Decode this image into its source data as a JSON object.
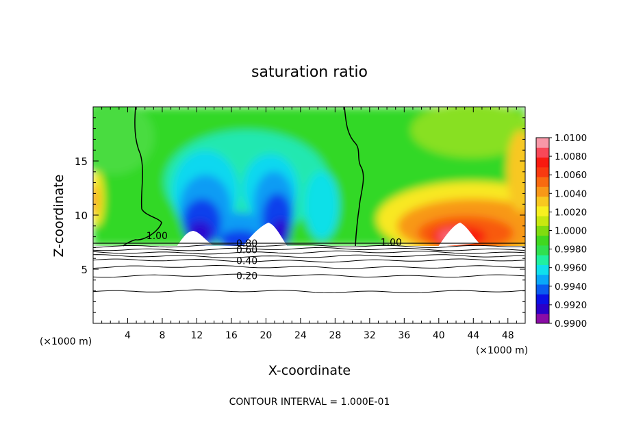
{
  "chart_data": {
    "type": "heatmap",
    "title": "saturation ratio",
    "xlabel": "X-coordinate",
    "ylabel": "Z-coordinate",
    "x_unit": "(×1000 m)",
    "xlim": [
      0,
      50
    ],
    "ylim": [
      0,
      20
    ],
    "x_ticks": [
      4,
      8,
      12,
      16,
      20,
      24,
      28,
      32,
      36,
      40,
      44,
      48
    ],
    "y_ticks": [
      5,
      10,
      15
    ],
    "footer": "CONTOUR INTERVAL = 1.000E-01",
    "colorbar": {
      "min": 0.99,
      "max": 1.01,
      "labels": [
        "1.0100",
        "1.0080",
        "1.0060",
        "1.0040",
        "1.0020",
        "1.0000",
        "0.9980",
        "0.9960",
        "0.9940",
        "0.9920",
        "0.9900"
      ],
      "colors": [
        "#8a0ca6",
        "#2a00c8",
        "#0a10e6",
        "#0a5cf0",
        "#0aa8f8",
        "#10e0ec",
        "#20f0a0",
        "#30e050",
        "#40d820",
        "#80dc10",
        "#c8e810",
        "#f8f020",
        "#f8c820",
        "#f89818",
        "#f86a10",
        "#f83a10",
        "#f81a10",
        "#f84858",
        "#f898a8"
      ]
    },
    "contour_labels": [
      {
        "label": "1.00",
        "x": 7.4,
        "y": 8.1
      },
      {
        "label": "1.00",
        "x": 34.5,
        "y": 7.5
      },
      {
        "label": "0.80",
        "x": 17.8,
        "y": 7.4
      },
      {
        "label": "0.60",
        "x": 17.8,
        "y": 6.8
      },
      {
        "label": "0.40",
        "x": 17.8,
        "y": 5.8
      },
      {
        "label": "0.20",
        "x": 17.8,
        "y": 4.4
      }
    ],
    "line_contours": [
      {
        "level": 0.2,
        "y": 4.4
      },
      {
        "level": 0.3,
        "y": 5.2
      },
      {
        "level": 0.4,
        "y": 5.8
      },
      {
        "level": 0.5,
        "y": 6.2
      },
      {
        "level": 0.6,
        "y": 6.55
      },
      {
        "level": 0.7,
        "y": 6.85
      },
      {
        "level": 0.8,
        "y": 7.15
      },
      {
        "level": 0.1,
        "y": 2.95
      }
    ],
    "cloud_base_z": 7.4
  }
}
